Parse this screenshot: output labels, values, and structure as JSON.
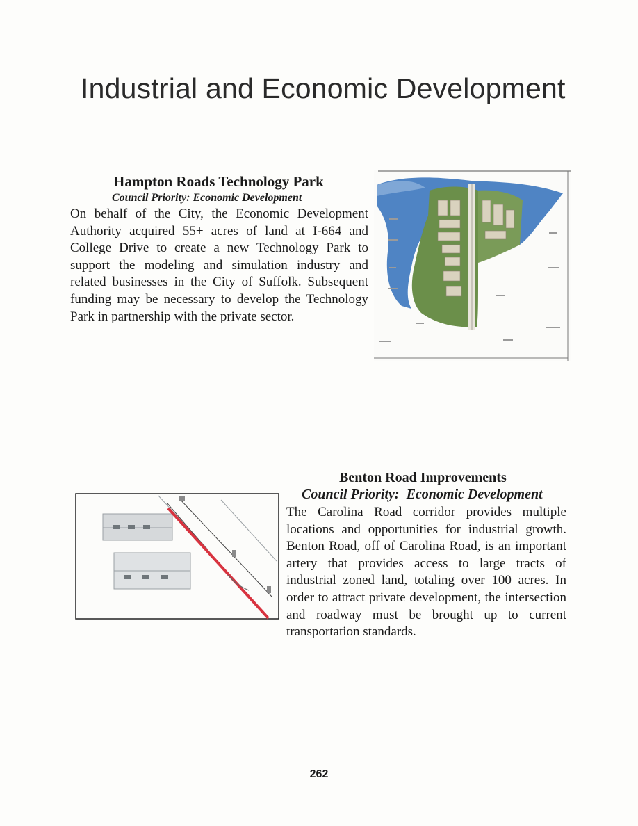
{
  "page": {
    "title": "Industrial and Economic Development",
    "number": "262"
  },
  "sections": [
    {
      "heading": "Hampton Roads Technology Park",
      "priority": "Council Priority: Economic Development",
      "body": "On behalf of the City, the Economic Development Authority acquired 55+ acres of land at I-664 and College Drive to create a new Technology Park to support the modeling and simulation industry and related businesses in the City of Suffolk. Subsequent funding may be necessary to develop the Technology Park in partnership with the private sector.",
      "figure_icon": "site-plan-map-icon"
    },
    {
      "heading": "Benton Road Improvements",
      "priority": "Council Priority:  Economic Development",
      "body": "The Carolina Road corridor provides multiple locations and opportunities for industrial growth. Benton Road, off of Carolina Road, is an important artery that provides access to large tracts of industrial zoned land, totaling over 100 acres. In order to attract private development, the intersection and roadway must be brought up to current transportation standards.",
      "figure_icon": "road-plan-diagram-icon",
      "accent_color": "#d8333f"
    }
  ]
}
